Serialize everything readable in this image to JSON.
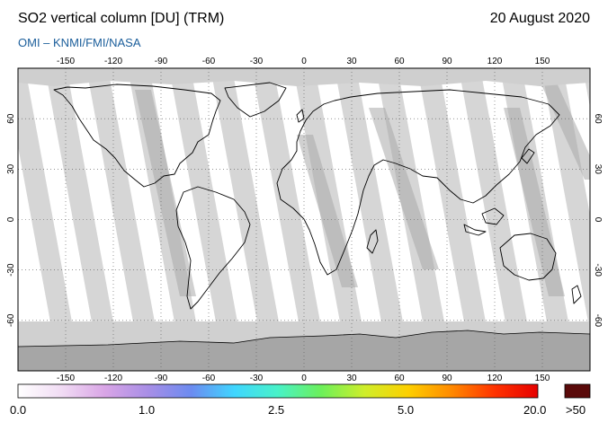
{
  "header": {
    "title": "SO2 vertical column [DU] (TRM)",
    "date": "20 August 2020",
    "subtitle": "OMI  –  KNMI/FMI/NASA"
  },
  "map": {
    "projection": "equirectangular",
    "lon_range": [
      -180,
      180
    ],
    "lat_range": [
      -90,
      90
    ],
    "lon_ticks": [
      "-150",
      "-120",
      "-90",
      "-60",
      "-30",
      "0",
      "30",
      "60",
      "90",
      "120",
      "150"
    ],
    "lat_ticks": [
      "60",
      "30",
      "0",
      "-30",
      "-60"
    ],
    "graticule": "dotted",
    "colors": {
      "background": "#ffffff",
      "swath_light": "#d6d6d6",
      "swath_dark": "#aaaaaa",
      "polar": "#a6a6a6",
      "coastline": "#000000"
    }
  },
  "colorbar": {
    "labels": [
      "0.0",
      "1.0",
      "2.5",
      "5.0",
      "20.0"
    ],
    "overflow_label": ">50",
    "overflow_color": "#5a0a0a",
    "gradient": [
      "#ffffff",
      "#f1dcf4",
      "#d9a5e6",
      "#a88ee6",
      "#6c8bf0",
      "#3fd6ff",
      "#48f2c8",
      "#6cf05a",
      "#cfee2a",
      "#fdd000",
      "#ff8a00",
      "#ff3300",
      "#e60000"
    ]
  }
}
